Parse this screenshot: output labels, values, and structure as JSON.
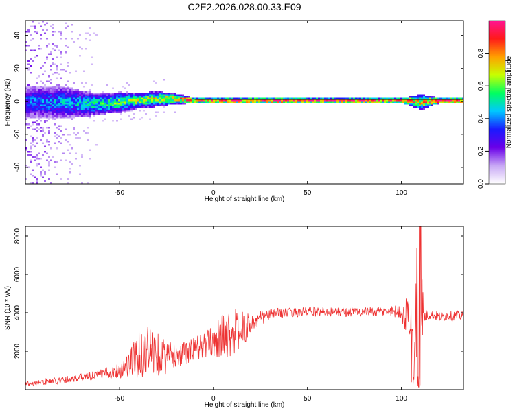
{
  "figure": {
    "title": "C2E2.2026.028.00.33.E09"
  },
  "chart_data": [
    {
      "type": "heatmap",
      "xlabel": "Height of straight line (km)",
      "ylabel": "Frequency (Hz)",
      "xlim": [
        -100,
        133
      ],
      "ylim": [
        -50,
        49
      ],
      "x_ticks": [
        -50,
        0,
        50,
        100
      ],
      "y_ticks": [
        -40,
        -20,
        0,
        20,
        40
      ],
      "grid": false,
      "colorbar": {
        "label": "Normalized spectral amplitude",
        "range": [
          0.0,
          1.0
        ],
        "ticks": [
          0.0,
          0.2,
          0.4,
          0.6,
          0.8
        ],
        "colormap": [
          "#ffffff",
          "#c8a8f5",
          "#6a00e8",
          "#1a1aff",
          "#00c8ff",
          "#00ff60",
          "#c8ff00",
          "#ffa000",
          "#ff1a1a",
          "#ff1493"
        ]
      },
      "ridge": {
        "x": [
          -100,
          -80,
          -70,
          -60,
          -50,
          -40,
          -30,
          -20,
          -10,
          0,
          10,
          20,
          40,
          60,
          80,
          100,
          110,
          120,
          133
        ],
        "freq": [
          0,
          0,
          -1,
          -1,
          0,
          1,
          2,
          2,
          1,
          1,
          1,
          1,
          1,
          1,
          1,
          1,
          0,
          1,
          1
        ],
        "spread_hz": [
          6,
          6,
          5,
          4,
          4,
          3,
          3,
          2,
          1,
          1,
          1,
          1,
          1,
          1,
          1,
          1,
          3,
          1,
          1
        ],
        "amplitude": [
          0.35,
          0.4,
          0.45,
          0.5,
          0.55,
          0.6,
          0.65,
          0.7,
          0.8,
          0.9,
          0.9,
          0.95,
          0.95,
          0.9,
          0.85,
          0.85,
          0.7,
          0.95,
          0.95
        ]
      },
      "noise_extent_x": [
        -100,
        -60
      ]
    },
    {
      "type": "line",
      "xlabel": "Height of straight line (km)",
      "ylabel": "SNR (10 * v/v)",
      "xlim": [
        -100,
        133
      ],
      "ylim": [
        0,
        8500
      ],
      "x_ticks": [
        -50,
        0,
        50,
        100
      ],
      "y_ticks": [
        2000,
        4000,
        6000,
        8000
      ],
      "grid": false,
      "color": "#ee3333",
      "series": [
        {
          "x": [
            -100,
            -90,
            -80,
            -70,
            -60,
            -50,
            -45,
            -40,
            -35,
            -30,
            -25,
            -20,
            -15,
            -10,
            -5,
            0,
            5,
            10,
            15,
            20,
            25,
            30,
            35,
            40,
            50,
            60,
            70,
            80,
            90,
            95,
            100,
            102,
            104,
            106,
            108,
            110,
            112,
            115,
            120,
            125,
            133
          ],
          "y": [
            300,
            400,
            500,
            650,
            800,
            1000,
            1300,
            1800,
            2000,
            1900,
            1700,
            1800,
            1900,
            2100,
            2300,
            2500,
            2800,
            3000,
            3100,
            3400,
            3700,
            3900,
            4000,
            4000,
            4050,
            4050,
            4050,
            4050,
            4050,
            4100,
            4050,
            3600,
            4400,
            2200,
            4900,
            5000,
            3800,
            3900,
            3800,
            3850,
            3850
          ],
          "noise": [
            150,
            150,
            200,
            200,
            250,
            400,
            800,
            1200,
            1400,
            1200,
            900,
            600,
            600,
            700,
            700,
            800,
            1200,
            1300,
            1000,
            500,
            400,
            300,
            250,
            250,
            250,
            250,
            250,
            250,
            250,
            300,
            350,
            800,
            1400,
            2000,
            3500,
            3500,
            400,
            250,
            250,
            250,
            250
          ]
        }
      ]
    }
  ]
}
